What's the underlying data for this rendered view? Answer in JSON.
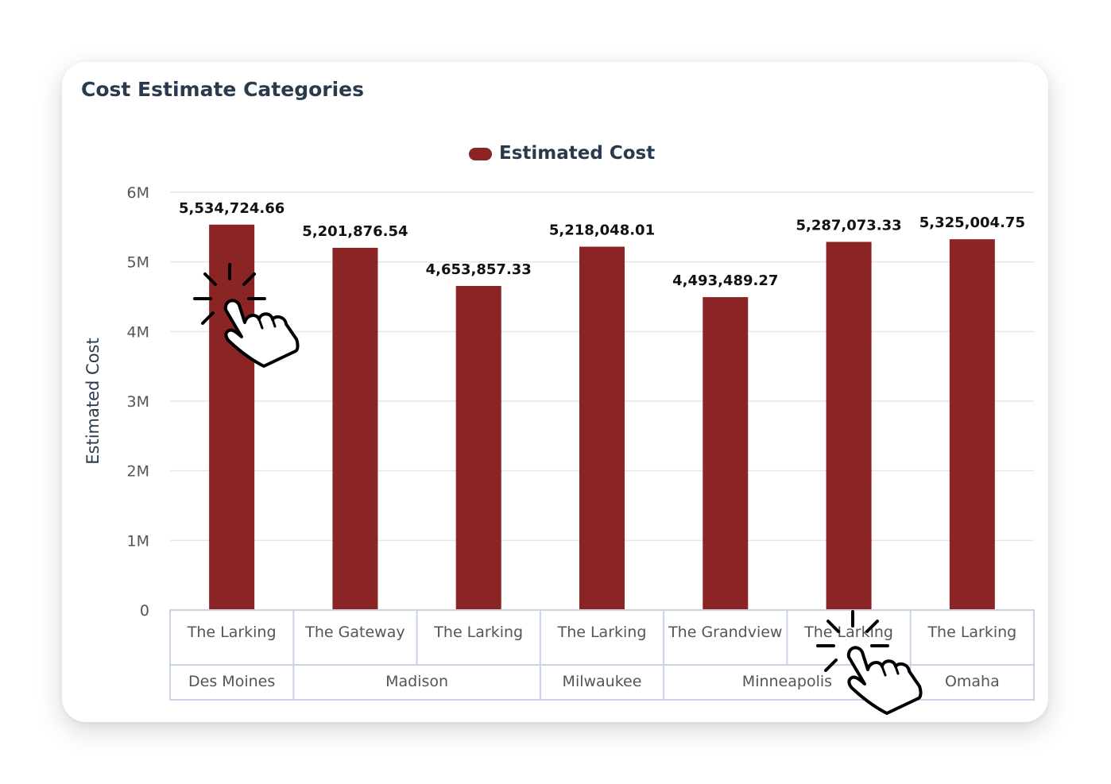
{
  "card": {
    "title": "Cost Estimate Categories"
  },
  "colors": {
    "bar": "#8b2424",
    "grid": "#e6e6e6",
    "table_border": "#c8d3e6",
    "axis_text": "#555555",
    "title_text": "#2a3a4d",
    "label_text": "#111111"
  },
  "icons": [
    "hand-pointer-click-icon",
    "hand-pointer-click-icon"
  ],
  "chart_data": {
    "type": "bar",
    "title": "",
    "legend": {
      "entries": [
        "Estimated Cost"
      ],
      "placement": "top-center"
    },
    "xlabel": "",
    "ylabel": "Estimated Cost",
    "ylim": [
      0,
      6000000
    ],
    "yticks": [
      {
        "value": 0,
        "label": "0"
      },
      {
        "value": 1000000,
        "label": "1M"
      },
      {
        "value": 2000000,
        "label": "2M"
      },
      {
        "value": 3000000,
        "label": "3M"
      },
      {
        "value": 4000000,
        "label": "4M"
      },
      {
        "value": 5000000,
        "label": "5M"
      },
      {
        "value": 6000000,
        "label": "6M"
      }
    ],
    "grid": true,
    "categories": [
      "The Larking",
      "The Gateway",
      "The Larking",
      "The Larking",
      "The Grandview",
      "The Larking",
      "The Larking"
    ],
    "groups": [
      {
        "label": "Des Moines",
        "count": 1
      },
      {
        "label": "Madison",
        "count": 2
      },
      {
        "label": "Milwaukee",
        "count": 1
      },
      {
        "label": "Minneapolis",
        "count": 2
      },
      {
        "label": "Omaha",
        "count": 1
      }
    ],
    "series": [
      {
        "name": "Estimated Cost",
        "values": [
          5534724.66,
          5201876.54,
          4653857.33,
          5218048.01,
          4493489.27,
          5287073.33,
          5325004.75
        ],
        "labels": [
          "5,534,724.66",
          "5,201,876.54",
          "4,653,857.33",
          "5,218,048.01",
          "4,493,489.27",
          "5,287,073.33",
          "5,325,004.75"
        ]
      }
    ]
  }
}
